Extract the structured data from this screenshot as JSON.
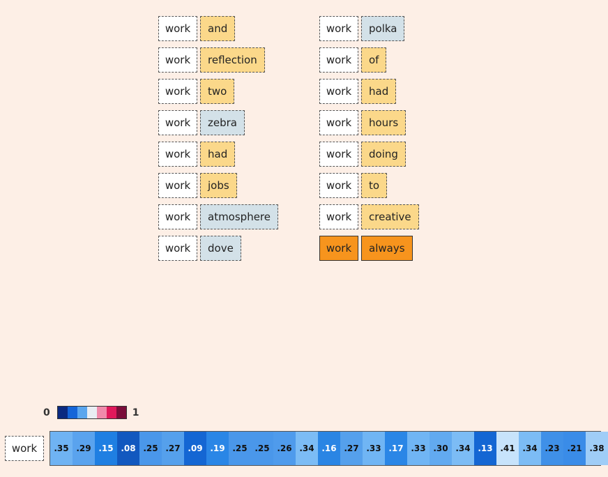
{
  "left_pairs": [
    {
      "query": "work",
      "word": "and",
      "tone": "yellow"
    },
    {
      "query": "work",
      "word": "reflection",
      "tone": "yellow"
    },
    {
      "query": "work",
      "word": "two",
      "tone": "yellow"
    },
    {
      "query": "work",
      "word": "zebra",
      "tone": "blue"
    },
    {
      "query": "work",
      "word": "had",
      "tone": "yellow"
    },
    {
      "query": "work",
      "word": "jobs",
      "tone": "yellow"
    },
    {
      "query": "work",
      "word": "atmosphere",
      "tone": "blue"
    },
    {
      "query": "work",
      "word": "dove",
      "tone": "blue"
    }
  ],
  "right_pairs": [
    {
      "query": "work",
      "word": "polka",
      "tone": "blue"
    },
    {
      "query": "work",
      "word": "of",
      "tone": "yellow"
    },
    {
      "query": "work",
      "word": "had",
      "tone": "yellow"
    },
    {
      "query": "work",
      "word": "hours",
      "tone": "yellow"
    },
    {
      "query": "work",
      "word": "doing",
      "tone": "yellow"
    },
    {
      "query": "work",
      "word": "to",
      "tone": "yellow"
    },
    {
      "query": "work",
      "word": "creative",
      "tone": "yellow"
    },
    {
      "query": "work",
      "word": "always",
      "tone": "orange"
    }
  ],
  "legend": {
    "min_label": "0",
    "max_label": "1",
    "colors": [
      "#0b2a80",
      "#1565d8",
      "#5ba6ee",
      "#e9edf3",
      "#f08aab",
      "#e0195b",
      "#7a0e3a"
    ]
  },
  "strip": {
    "query_label": "work",
    "values": [
      ".35",
      ".29",
      ".15",
      ".08",
      ".25",
      ".27",
      ".09",
      ".19",
      ".25",
      ".25",
      ".26",
      ".34",
      ".16",
      ".27",
      ".33",
      ".17",
      ".33",
      ".30",
      ".34",
      ".13",
      ".41",
      ".34",
      ".23",
      ".21",
      ".38"
    ],
    "colors": [
      "#6fb3f3",
      "#5aa3ee",
      "#1f7fe2",
      "#1258bf",
      "#4a97ea",
      "#55a0ec",
      "#1466d3",
      "#2a86e6",
      "#4a97ea",
      "#4a97ea",
      "#4f9bec",
      "#7cbcf5",
      "#2a85e4",
      "#55a0ec",
      "#70b5f4",
      "#2a86e6",
      "#70b5f4",
      "#62aaf0",
      "#7cbcf5",
      "#1466d3",
      "#c7e3fb",
      "#7cbcf5",
      "#3f90e8",
      "#3a8ce8",
      "#9fcdf7"
    ],
    "light_text": [
      false,
      false,
      true,
      true,
      false,
      false,
      true,
      true,
      false,
      false,
      false,
      false,
      true,
      false,
      false,
      true,
      false,
      false,
      false,
      true,
      false,
      false,
      false,
      false,
      false
    ]
  }
}
